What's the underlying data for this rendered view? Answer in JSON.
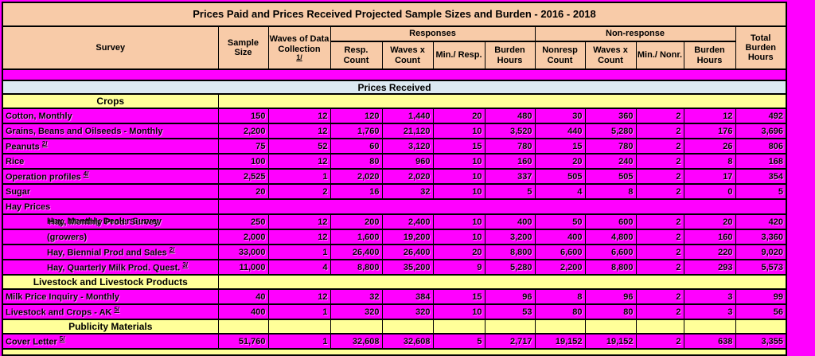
{
  "colors": {
    "page_background": "#FF00FF",
    "header_fill": "#F8CBA8",
    "section_fill": "#FFFF99",
    "band_fill": "#DCE9F2",
    "grid": "#000000"
  },
  "title": "Prices Paid and Prices Received Projected Sample Sizes and Burden - 2016 - 2018",
  "header": {
    "survey": "Survey",
    "sample_size": "Sample Size",
    "waves_label": "Waves of Data Collection",
    "waves_footnote": "1/",
    "responses_group": "Responses",
    "nonresponse_group": "Non-response",
    "sub": [
      "Resp. Count",
      "Waves x Count",
      "Min./ Resp.",
      "Burden Hours",
      "Nonresp Count",
      "Waves x Count",
      "Min./ Nonr.",
      "Burden Hours"
    ],
    "total": "Total Burden Hours"
  },
  "rows": [
    {
      "id": "spacer-row",
      "type": "spacer"
    },
    {
      "id": "prices-received-band",
      "type": "band",
      "label": "Prices Received"
    },
    {
      "id": "section-crops",
      "type": "section",
      "label": "Crops"
    },
    {
      "id": "row-cotton-monthly",
      "type": "data",
      "label": "Cotton, Monthly",
      "values": [
        "150",
        "12",
        "120",
        "1,440",
        "20",
        "480",
        "30",
        "360",
        "2",
        "12",
        "492"
      ]
    },
    {
      "id": "row-grains-beans-oilseeds",
      "type": "data",
      "label": "Grains, Beans and Oilseeds - Monthly",
      "values": [
        "2,200",
        "12",
        "1,760",
        "21,120",
        "10",
        "3,520",
        "440",
        "5,280",
        "2",
        "176",
        "3,696"
      ]
    },
    {
      "id": "row-peanuts",
      "type": "data",
      "label": "Peanuts",
      "sup": "2/",
      "values": [
        "75",
        "52",
        "60",
        "3,120",
        "15",
        "780",
        "15",
        "780",
        "2",
        "26",
        "806"
      ]
    },
    {
      "id": "row-rice",
      "type": "data",
      "label": "Rice",
      "values": [
        "100",
        "12",
        "80",
        "960",
        "10",
        "160",
        "20",
        "240",
        "2",
        "8",
        "168"
      ]
    },
    {
      "id": "row-operation-profiles",
      "type": "data",
      "label": "Operation profiles",
      "sup": "4/",
      "values": [
        "2,525",
        "1",
        "2,020",
        "2,020",
        "10",
        "337",
        "505",
        "505",
        "2",
        "17",
        "354"
      ]
    },
    {
      "id": "row-sugar",
      "type": "data",
      "label": "Sugar",
      "values": [
        "20",
        "2",
        "16",
        "32",
        "10",
        "5",
        "4",
        "8",
        "2",
        "0",
        "5"
      ]
    },
    {
      "id": "row-hay-prices",
      "type": "label",
      "label": "Hay Prices"
    },
    {
      "id": "row-hay-monthly",
      "type": "overlap",
      "labels": [
        "Hay, Monthly Dealer Survey",
        "Hay, Monthly Prod. Survey"
      ],
      "indent": 55,
      "values": [
        "250",
        "12",
        "200",
        "2,400",
        "10",
        "400",
        "50",
        "600",
        "2",
        "20",
        "420"
      ]
    },
    {
      "id": "row-hay-growers",
      "type": "data",
      "label": "(growers)",
      "indent": 55,
      "values": [
        "2,000",
        "12",
        "1,600",
        "19,200",
        "10",
        "3,200",
        "400",
        "4,800",
        "2",
        "160",
        "3,360"
      ]
    },
    {
      "id": "row-hay-biennial",
      "type": "data",
      "label": "Hay, Biennial Prod and Sales",
      "sup": "2/",
      "indent": 55,
      "values": [
        "33,000",
        "1",
        "26,400",
        "26,400",
        "20",
        "8,800",
        "6,600",
        "6,600",
        "2",
        "220",
        "9,020"
      ]
    },
    {
      "id": "row-hay-quarterly-milk",
      "type": "data",
      "label": "Hay, Quarterly Milk Prod. Quest.",
      "sup": "3/",
      "indent": 55,
      "values": [
        "11,000",
        "4",
        "8,800",
        "35,200",
        "9",
        "5,280",
        "2,200",
        "8,800",
        "2",
        "293",
        "5,573"
      ]
    },
    {
      "id": "section-livestock",
      "type": "section",
      "label": "Livestock and Livestock Products"
    },
    {
      "id": "row-milk-price-inquiry",
      "type": "data",
      "label": "Milk Price Inquiry - Monthly",
      "values": [
        "40",
        "12",
        "32",
        "384",
        "15",
        "96",
        "8",
        "96",
        "2",
        "3",
        "99"
      ]
    },
    {
      "id": "row-livestock-crops-ak",
      "type": "data",
      "label": "Livestock and Crops - AK",
      "sup": "5/",
      "values": [
        "400",
        "1",
        "320",
        "320",
        "10",
        "53",
        "80",
        "80",
        "2",
        "3",
        "56"
      ]
    },
    {
      "id": "section-publicity",
      "type": "section_cells",
      "label": "Publicity Materials"
    },
    {
      "id": "row-cover-letter",
      "type": "data",
      "label": "Cover Letter",
      "sup": "5/",
      "values": [
        "51,760",
        "1",
        "32,608",
        "32,608",
        "5",
        "2,717",
        "19,152",
        "19,152",
        "2",
        "638",
        "3,355"
      ]
    },
    {
      "id": "clipped-bottom-row",
      "type": "clip"
    }
  ]
}
